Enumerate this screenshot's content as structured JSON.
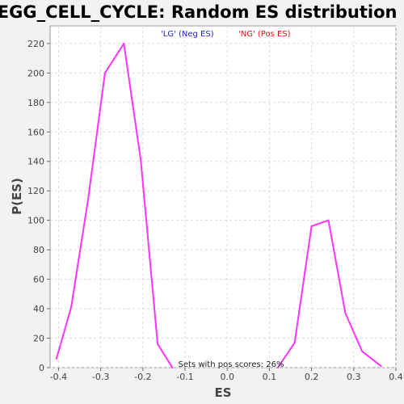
{
  "chart_data": {
    "type": "line",
    "title": "KEGG_CELL_CYCLE: Random ES distribution",
    "xlabel": "ES",
    "ylabel": "P(ES)",
    "xlim": [
      -0.42,
      0.4
    ],
    "ylim": [
      0,
      232
    ],
    "x_ticks": [
      -0.4,
      -0.3,
      -0.2,
      -0.1,
      0.0,
      0.1,
      0.2,
      0.3,
      0.4
    ],
    "x_tick_labels": [
      "-0.4",
      "-0.3",
      "-0.2",
      "-0.1",
      "0.0",
      "0.1",
      "0.2",
      "0.3",
      "0.4"
    ],
    "y_ticks": [
      0,
      20,
      40,
      60,
      80,
      100,
      120,
      140,
      160,
      180,
      200,
      220
    ],
    "grid": true,
    "series": [
      {
        "color": "#ff33ff",
        "x": [
          -0.405,
          -0.37,
          -0.33,
          -0.29,
          -0.245,
          -0.205,
          -0.165,
          -0.13
        ],
        "y": [
          6,
          41,
          114,
          200,
          220,
          141,
          16,
          0
        ]
      },
      {
        "color": "#ff33ff",
        "x": [
          0.12,
          0.16,
          0.2,
          0.24,
          0.28,
          0.32,
          0.365
        ],
        "y": [
          0,
          17,
          96,
          100,
          37,
          11,
          1
        ]
      }
    ],
    "legend": [
      {
        "label": "'LG' (Neg ES)",
        "color": "#2222cc"
      },
      {
        "label": "'NG' (Pos ES)",
        "color": "#dd1111"
      }
    ],
    "legend_position": "top-center",
    "annotation": "Sets with pos scores: 26%"
  }
}
